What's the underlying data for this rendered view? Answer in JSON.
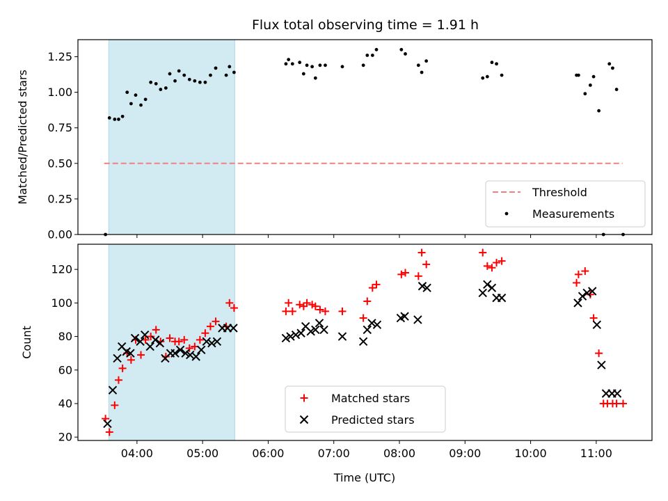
{
  "chart_data": [
    {
      "type": "scatter",
      "title": "Flux total observing time = 1.91 h",
      "ylabel": "Matched/Predicted stars",
      "xlabel": "",
      "x_unit": "hours UTC",
      "xlim": [
        3.1,
        11.85
      ],
      "ylim": [
        0.0,
        1.37
      ],
      "yticks": [
        0.0,
        0.25,
        0.5,
        0.75,
        1.0,
        1.25
      ],
      "ytick_labels": [
        "0.00",
        "0.25",
        "0.50",
        "0.75",
        "1.00",
        "1.25"
      ],
      "shaded_interval": {
        "start": 3.57,
        "end": 5.49,
        "color": "#add8e6"
      },
      "legend_position": "lower-right",
      "grid": false,
      "series": [
        {
          "name": "Threshold",
          "kind": "dashed-line",
          "color": "#f08080",
          "x": [
            3.5,
            11.4
          ],
          "y": [
            0.5,
            0.5
          ]
        },
        {
          "name": "Measurements",
          "kind": "dot",
          "color": "#000000",
          "x": [
            3.52,
            3.58,
            3.66,
            3.72,
            3.78,
            3.85,
            3.91,
            3.98,
            4.06,
            4.13,
            4.21,
            4.29,
            4.36,
            4.44,
            4.5,
            4.58,
            4.64,
            4.72,
            4.8,
            4.88,
            4.96,
            5.04,
            5.12,
            5.2,
            5.36,
            5.41,
            5.48,
            6.27,
            6.31,
            6.37,
            6.48,
            6.54,
            6.59,
            6.67,
            6.72,
            6.79,
            6.87,
            7.13,
            7.45,
            7.51,
            7.59,
            7.65,
            8.03,
            8.09,
            8.29,
            8.34,
            8.41,
            9.27,
            9.34,
            9.41,
            9.48,
            9.56,
            10.7,
            10.73,
            10.83,
            10.91,
            10.96,
            11.04,
            11.11,
            11.2,
            11.25,
            11.31,
            11.41
          ],
          "y": [
            0.0,
            0.82,
            0.81,
            0.81,
            0.83,
            1.0,
            0.92,
            0.98,
            0.91,
            0.95,
            1.07,
            1.06,
            1.02,
            1.03,
            1.13,
            1.08,
            1.15,
            1.12,
            1.09,
            1.08,
            1.07,
            1.07,
            1.12,
            1.17,
            1.12,
            1.18,
            1.14,
            1.2,
            1.23,
            1.2,
            1.21,
            1.13,
            1.19,
            1.18,
            1.1,
            1.19,
            1.19,
            1.18,
            1.19,
            1.26,
            1.26,
            1.3,
            1.3,
            1.27,
            1.19,
            1.14,
            1.22,
            1.1,
            1.11,
            1.21,
            1.2,
            1.12,
            1.12,
            1.12,
            0.99,
            1.05,
            1.11,
            0.87,
            0.0,
            1.2,
            1.17,
            1.02,
            0.0
          ],
          "y_note": ""
        }
      ]
    },
    {
      "type": "scatter",
      "title": "",
      "xlabel": "Time (UTC)",
      "ylabel": "Count",
      "x_unit": "hours UTC",
      "xlim": [
        3.1,
        11.85
      ],
      "ylim": [
        18,
        135
      ],
      "xticks": [
        4,
        5,
        6,
        7,
        8,
        9,
        10,
        11
      ],
      "xtick_labels": [
        "04:00",
        "05:00",
        "06:00",
        "07:00",
        "08:00",
        "09:00",
        "10:00",
        "11:00"
      ],
      "yticks": [
        20,
        40,
        60,
        80,
        100,
        120
      ],
      "ytick_labels": [
        "20",
        "40",
        "60",
        "80",
        "100",
        "120"
      ],
      "shaded_interval": {
        "start": 3.57,
        "end": 5.49,
        "color": "#add8e6"
      },
      "legend_position": "lower-center",
      "grid": false,
      "series": [
        {
          "name": "Matched stars",
          "kind": "plus",
          "color": "#ff0000",
          "x": [
            3.52,
            3.58,
            3.66,
            3.72,
            3.78,
            3.85,
            3.91,
            3.98,
            4.06,
            4.13,
            4.21,
            4.29,
            4.36,
            4.44,
            4.5,
            4.58,
            4.64,
            4.72,
            4.8,
            4.88,
            4.96,
            5.04,
            5.12,
            5.2,
            5.36,
            5.41,
            5.48,
            6.27,
            6.31,
            6.37,
            6.48,
            6.54,
            6.59,
            6.67,
            6.72,
            6.79,
            6.87,
            7.13,
            7.45,
            7.51,
            7.59,
            7.65,
            8.03,
            8.09,
            8.29,
            8.34,
            8.41,
            9.27,
            9.34,
            9.41,
            9.48,
            9.56,
            10.7,
            10.73,
            10.83,
            10.91,
            10.96,
            11.04,
            11.11,
            11.17,
            11.25,
            11.31,
            11.41
          ],
          "y": [
            31,
            23,
            39,
            54,
            61,
            70,
            66,
            78,
            69,
            78,
            80,
            84,
            77,
            68,
            79,
            77,
            77,
            78,
            73,
            74,
            78,
            82,
            86,
            89,
            86,
            100,
            97,
            95,
            100,
            95,
            99,
            98,
            100,
            99,
            98,
            96,
            95,
            95,
            91,
            101,
            109,
            111,
            117,
            118,
            116,
            130,
            123,
            130,
            122,
            121,
            124,
            125,
            112,
            117,
            119,
            105,
            91,
            70,
            40,
            40,
            40,
            40,
            40
          ],
          "y_note": ""
        },
        {
          "name": "Predicted stars",
          "kind": "cross",
          "color": "#000000",
          "x": [
            3.55,
            3.63,
            3.7,
            3.77,
            3.84,
            3.9,
            3.97,
            4.05,
            4.12,
            4.2,
            4.28,
            4.35,
            4.43,
            4.51,
            4.58,
            4.66,
            4.74,
            4.81,
            4.9,
            4.98,
            5.06,
            5.14,
            5.22,
            5.3,
            5.38,
            5.47,
            6.27,
            6.34,
            6.42,
            6.5,
            6.57,
            6.65,
            6.72,
            6.78,
            6.85,
            7.13,
            7.45,
            7.51,
            7.58,
            7.66,
            8.02,
            8.08,
            8.28,
            8.35,
            8.42,
            9.27,
            9.34,
            9.41,
            9.48,
            9.56,
            10.72,
            10.79,
            10.86,
            10.94,
            11.01,
            11.08,
            11.15,
            11.24,
            11.32
          ],
          "y": [
            28,
            48,
            67,
            74,
            71,
            70,
            79,
            77,
            81,
            74,
            78,
            76,
            67,
            70,
            70,
            72,
            70,
            69,
            68,
            72,
            77,
            76,
            77,
            85,
            85,
            85,
            79,
            80,
            81,
            82,
            86,
            83,
            84,
            88,
            84,
            80,
            77,
            84,
            88,
            87,
            91,
            92,
            90,
            110,
            109,
            106,
            111,
            109,
            103,
            103,
            100,
            104,
            106,
            107,
            87,
            63,
            46,
            46,
            46
          ],
          "y_note": ""
        }
      ]
    }
  ]
}
